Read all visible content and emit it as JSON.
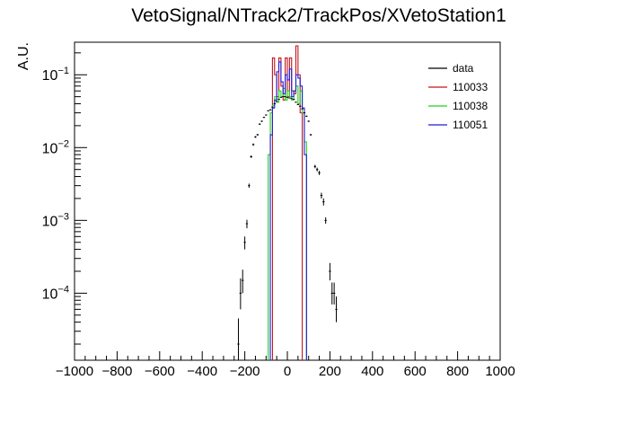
{
  "chart_data": {
    "type": "histogram",
    "title": "VetoSignal/NTrack2/TrackPos/XVetoStation1",
    "xlabel": "",
    "ylabel": "A.U.",
    "xlim": [
      -1000,
      1000
    ],
    "ylim": [
      1.2e-05,
      0.28
    ],
    "y_scale": "log",
    "grid": false,
    "legend_position": "top-right",
    "x_ticks": [
      -1000,
      -800,
      -600,
      -400,
      -200,
      0,
      200,
      400,
      600,
      800,
      1000
    ],
    "x_tick_labels": [
      "−1000",
      "−800",
      "−600",
      "−400",
      "−200",
      "0",
      "200",
      "400",
      "600",
      "800",
      "1000"
    ],
    "y_major_ticks": [
      0.0001,
      0.001,
      0.01,
      0.1
    ],
    "y_tick_labels": [
      {
        "base": "10",
        "exp": "−4",
        "value": 0.0001
      },
      {
        "base": "10",
        "exp": "−3",
        "value": 0.001
      },
      {
        "base": "10",
        "exp": "−2",
        "value": 0.01
      },
      {
        "base": "10",
        "exp": "−1",
        "value": 0.1
      }
    ],
    "series": [
      {
        "name": "data",
        "kind": "points",
        "color": "#000000",
        "points": [
          {
            "x": -230,
            "y": 2e-05,
            "lo": 1.2e-05,
            "hi": 4.5e-05
          },
          {
            "x": -220,
            "y": 0.0001,
            "lo": 6e-05,
            "hi": 0.00016
          },
          {
            "x": -210,
            "y": 0.00015,
            "lo": 0.0001,
            "hi": 0.00021
          },
          {
            "x": -200,
            "y": 0.0005,
            "lo": 0.0004,
            "hi": 0.0006
          },
          {
            "x": -190,
            "y": 0.0009,
            "lo": 0.00078,
            "hi": 0.00102
          },
          {
            "x": -180,
            "y": 0.003,
            "lo": 0.0028,
            "hi": 0.0032
          },
          {
            "x": -170,
            "y": 0.0075,
            "lo": 0.0072,
            "hi": 0.0078
          },
          {
            "x": -160,
            "y": 0.011,
            "lo": 0.0106,
            "hi": 0.0114
          },
          {
            "x": -150,
            "y": 0.014,
            "lo": 0.0136,
            "hi": 0.0144
          },
          {
            "x": -140,
            "y": 0.015,
            "lo": 0.0146,
            "hi": 0.0154
          },
          {
            "x": -130,
            "y": 0.021,
            "lo": 0.0205,
            "hi": 0.0215
          },
          {
            "x": -120,
            "y": 0.023,
            "lo": 0.0225,
            "hi": 0.0235
          },
          {
            "x": -110,
            "y": 0.026,
            "lo": 0.0255,
            "hi": 0.0265
          },
          {
            "x": -100,
            "y": 0.028,
            "lo": 0.0275,
            "hi": 0.0285
          },
          {
            "x": -90,
            "y": 0.032,
            "lo": 0.0315,
            "hi": 0.0325
          },
          {
            "x": -80,
            "y": 0.033,
            "lo": 0.0325,
            "hi": 0.0335
          },
          {
            "x": -70,
            "y": 0.036,
            "lo": 0.0355,
            "hi": 0.0365
          },
          {
            "x": -60,
            "y": 0.04,
            "lo": 0.0395,
            "hi": 0.0405
          },
          {
            "x": -50,
            "y": 0.043,
            "lo": 0.0425,
            "hi": 0.0435
          },
          {
            "x": -40,
            "y": 0.046,
            "lo": 0.0455,
            "hi": 0.0465
          },
          {
            "x": -30,
            "y": 0.049,
            "lo": 0.0485,
            "hi": 0.0495
          },
          {
            "x": -20,
            "y": 0.05,
            "lo": 0.0495,
            "hi": 0.0505
          },
          {
            "x": -10,
            "y": 0.05,
            "lo": 0.0495,
            "hi": 0.0505
          },
          {
            "x": 0,
            "y": 0.049,
            "lo": 0.0485,
            "hi": 0.0495
          },
          {
            "x": 10,
            "y": 0.048,
            "lo": 0.0475,
            "hi": 0.0485
          },
          {
            "x": 20,
            "y": 0.047,
            "lo": 0.0465,
            "hi": 0.0475
          },
          {
            "x": 30,
            "y": 0.046,
            "lo": 0.0455,
            "hi": 0.0465
          },
          {
            "x": 40,
            "y": 0.042,
            "lo": 0.0415,
            "hi": 0.0425
          },
          {
            "x": 50,
            "y": 0.039,
            "lo": 0.0385,
            "hi": 0.0395
          },
          {
            "x": 60,
            "y": 0.037,
            "lo": 0.0365,
            "hi": 0.0375
          },
          {
            "x": 70,
            "y": 0.034,
            "lo": 0.0335,
            "hi": 0.0345
          },
          {
            "x": 80,
            "y": 0.03,
            "lo": 0.0295,
            "hi": 0.0305
          },
          {
            "x": 90,
            "y": 0.027,
            "lo": 0.0265,
            "hi": 0.0275
          },
          {
            "x": 100,
            "y": 0.023,
            "lo": 0.0225,
            "hi": 0.0235
          },
          {
            "x": 110,
            "y": 0.015,
            "lo": 0.0146,
            "hi": 0.0154
          },
          {
            "x": 130,
            "y": 0.0055,
            "lo": 0.0052,
            "hi": 0.0058
          },
          {
            "x": 140,
            "y": 0.005,
            "lo": 0.0047,
            "hi": 0.0053
          },
          {
            "x": 150,
            "y": 0.0045,
            "lo": 0.0042,
            "hi": 0.0048
          },
          {
            "x": 160,
            "y": 0.0022,
            "lo": 0.002,
            "hi": 0.0024
          },
          {
            "x": 170,
            "y": 0.0018,
            "lo": 0.0016,
            "hi": 0.002
          },
          {
            "x": 180,
            "y": 0.001,
            "lo": 0.0009,
            "hi": 0.0011
          },
          {
            "x": 200,
            "y": 0.0002,
            "lo": 0.00015,
            "hi": 0.00026
          },
          {
            "x": 210,
            "y": 0.0001,
            "lo": 7e-05,
            "hi": 0.00014
          },
          {
            "x": 220,
            "y": 0.0001,
            "lo": 7e-05,
            "hi": 0.00014
          },
          {
            "x": 230,
            "y": 6e-05,
            "lo": 4e-05,
            "hi": 9e-05
          }
        ]
      },
      {
        "name": "110033",
        "kind": "histogram",
        "color": "#c0141e",
        "bins": [
          {
            "x0": -70,
            "x1": -60,
            "y": 0.17
          },
          {
            "x0": -60,
            "x1": -50,
            "y": 0.1
          },
          {
            "x0": -50,
            "x1": -40,
            "y": 0.05
          },
          {
            "x0": -40,
            "x1": -30,
            "y": 0.17
          },
          {
            "x0": -30,
            "x1": -20,
            "y": 0.07
          },
          {
            "x0": -20,
            "x1": -10,
            "y": 0.045
          },
          {
            "x0": -10,
            "x1": 0,
            "y": 0.17
          },
          {
            "x0": 0,
            "x1": 10,
            "y": 0.05
          },
          {
            "x0": 10,
            "x1": 20,
            "y": 0.17
          },
          {
            "x0": 20,
            "x1": 30,
            "y": 0.06
          },
          {
            "x0": 30,
            "x1": 40,
            "y": 0.055
          },
          {
            "x0": 40,
            "x1": 50,
            "y": 0.25
          },
          {
            "x0": 50,
            "x1": 60,
            "y": 0.1
          },
          {
            "x0": 60,
            "x1": 70,
            "y": 0.03
          }
        ]
      },
      {
        "name": "110038",
        "kind": "histogram",
        "color": "#1bd31b",
        "bins": [
          {
            "x0": -90,
            "x1": -80,
            "y": 0.008
          },
          {
            "x0": -80,
            "x1": -70,
            "y": 0.03
          },
          {
            "x0": -70,
            "x1": -60,
            "y": 0.038
          },
          {
            "x0": -60,
            "x1": -50,
            "y": 0.05
          },
          {
            "x0": -50,
            "x1": -40,
            "y": 0.042
          },
          {
            "x0": -40,
            "x1": -30,
            "y": 0.06
          },
          {
            "x0": -30,
            "x1": -20,
            "y": 0.05
          },
          {
            "x0": -20,
            "x1": -10,
            "y": 0.065
          },
          {
            "x0": -10,
            "x1": 0,
            "y": 0.045
          },
          {
            "x0": 0,
            "x1": 10,
            "y": 0.06
          },
          {
            "x0": 10,
            "x1": 20,
            "y": 0.05
          },
          {
            "x0": 20,
            "x1": 30,
            "y": 0.045
          },
          {
            "x0": 30,
            "x1": 40,
            "y": 0.06
          },
          {
            "x0": 40,
            "x1": 50,
            "y": 0.07
          },
          {
            "x0": 50,
            "x1": 60,
            "y": 0.04
          },
          {
            "x0": 60,
            "x1": 70,
            "y": 0.06
          },
          {
            "x0": 70,
            "x1": 80,
            "y": 0.03
          },
          {
            "x0": 80,
            "x1": 90,
            "y": 0.012
          }
        ]
      },
      {
        "name": "110051",
        "kind": "histogram",
        "color": "#1f1fd8",
        "bins": [
          {
            "x0": -80,
            "x1": -70,
            "y": 0.015
          },
          {
            "x0": -70,
            "x1": -60,
            "y": 0.035
          },
          {
            "x0": -60,
            "x1": -50,
            "y": 0.045
          },
          {
            "x0": -50,
            "x1": -40,
            "y": 0.11
          },
          {
            "x0": -40,
            "x1": -30,
            "y": 0.15
          },
          {
            "x0": -30,
            "x1": -20,
            "y": 0.08
          },
          {
            "x0": -20,
            "x1": -10,
            "y": 0.055
          },
          {
            "x0": -10,
            "x1": 0,
            "y": 0.1
          },
          {
            "x0": 0,
            "x1": 10,
            "y": 0.085
          },
          {
            "x0": 10,
            "x1": 20,
            "y": 0.12
          },
          {
            "x0": 20,
            "x1": 30,
            "y": 0.05
          },
          {
            "x0": 30,
            "x1": 40,
            "y": 0.06
          },
          {
            "x0": 40,
            "x1": 50,
            "y": 0.1
          },
          {
            "x0": 50,
            "x1": 60,
            "y": 0.09
          },
          {
            "x0": 60,
            "x1": 70,
            "y": 0.07
          },
          {
            "x0": 70,
            "x1": 80,
            "y": 0.035
          },
          {
            "x0": 80,
            "x1": 90,
            "y": 0.008
          }
        ]
      }
    ]
  }
}
